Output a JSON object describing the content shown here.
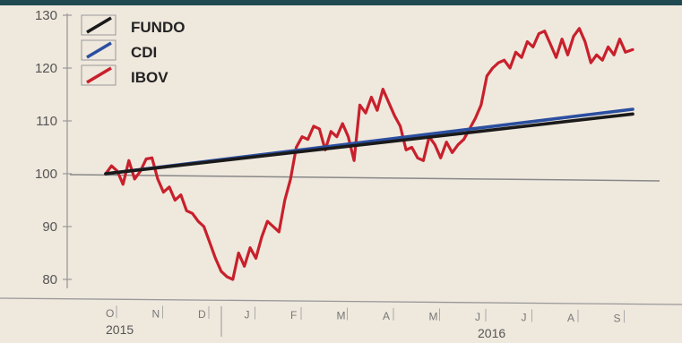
{
  "chart_data": {
    "type": "line",
    "title": "",
    "xlabel": "",
    "ylabel": "",
    "ylim": [
      77,
      131
    ],
    "y_ticks": [
      "130",
      "120",
      "110",
      "100",
      "90",
      "80"
    ],
    "y_tick_values": [
      130,
      120,
      110,
      100,
      90,
      80
    ],
    "month_labels": [
      "O",
      "N",
      "D",
      "J",
      "F",
      "M",
      "A",
      "M",
      "J",
      "J",
      "A",
      "S"
    ],
    "year_labels": [
      "2015",
      "2016"
    ],
    "x_range_months": [
      "2015-10",
      "2016-09"
    ],
    "grid": false,
    "legend_position": "top-left",
    "reference_line": 100,
    "series": [
      {
        "name": "FUNDO",
        "color": "#1a1a1a",
        "x": [
          "2015-10-01",
          "2016-09-30"
        ],
        "values": [
          100.0,
          111.3
        ]
      },
      {
        "name": "CDI",
        "color": "#2b4fa0",
        "x": [
          "2015-10-01",
          "2016-09-30"
        ],
        "values": [
          100.0,
          112.2
        ]
      },
      {
        "name": "IBOV",
        "color": "#c8202c",
        "x": [
          "2015-10-01",
          "2015-10-05",
          "2015-10-09",
          "2015-10-13",
          "2015-10-17",
          "2015-10-21",
          "2015-10-25",
          "2015-10-29",
          "2015-11-02",
          "2015-11-06",
          "2015-11-10",
          "2015-11-14",
          "2015-11-18",
          "2015-11-22",
          "2015-11-26",
          "2015-11-30",
          "2015-12-04",
          "2015-12-08",
          "2015-12-12",
          "2015-12-16",
          "2015-12-20",
          "2015-12-24",
          "2015-12-28",
          "2016-01-01",
          "2016-01-05",
          "2016-01-09",
          "2016-01-13",
          "2016-01-17",
          "2016-01-21",
          "2016-01-25",
          "2016-01-29",
          "2016-02-02",
          "2016-02-06",
          "2016-02-10",
          "2016-02-14",
          "2016-02-18",
          "2016-02-22",
          "2016-02-26",
          "2016-03-01",
          "2016-03-05",
          "2016-03-09",
          "2016-03-13",
          "2016-03-17",
          "2016-03-21",
          "2016-03-25",
          "2016-03-29",
          "2016-04-02",
          "2016-04-06",
          "2016-04-10",
          "2016-04-14",
          "2016-04-18",
          "2016-04-22",
          "2016-04-26",
          "2016-04-30",
          "2016-05-04",
          "2016-05-08",
          "2016-05-12",
          "2016-05-16",
          "2016-05-20",
          "2016-05-24",
          "2016-05-28",
          "2016-06-01",
          "2016-06-05",
          "2016-06-09",
          "2016-06-13",
          "2016-06-17",
          "2016-06-21",
          "2016-06-25",
          "2016-06-29",
          "2016-07-03",
          "2016-07-07",
          "2016-07-11",
          "2016-07-15",
          "2016-07-19",
          "2016-07-23",
          "2016-07-27",
          "2016-07-31",
          "2016-08-04",
          "2016-08-08",
          "2016-08-12",
          "2016-08-16",
          "2016-08-20",
          "2016-08-24",
          "2016-08-28",
          "2016-09-01",
          "2016-09-05",
          "2016-09-09",
          "2016-09-13",
          "2016-09-17",
          "2016-09-21",
          "2016-09-25",
          "2016-09-30"
        ],
        "values": [
          100.0,
          101.5,
          100.5,
          98.0,
          102.5,
          99.0,
          100.5,
          102.8,
          103.0,
          99.0,
          96.5,
          97.5,
          95.0,
          96.0,
          93.0,
          92.5,
          91.0,
          90.0,
          87.0,
          84.0,
          81.5,
          80.5,
          80.0,
          85.0,
          82.5,
          86.0,
          84.0,
          88.0,
          91.0,
          90.0,
          89.0,
          95.0,
          99.0,
          105.0,
          107.0,
          106.5,
          109.0,
          108.5,
          104.5,
          108.0,
          107.0,
          109.5,
          107.0,
          102.5,
          113.0,
          111.5,
          114.5,
          112.0,
          116.0,
          113.5,
          111.0,
          109.0,
          104.5,
          105.0,
          103.0,
          102.5,
          107.0,
          105.5,
          103.0,
          106.0,
          104.0,
          105.5,
          106.5,
          108.5,
          110.5,
          113.0,
          118.5,
          120.0,
          121.0,
          121.5,
          120.0,
          123.0,
          122.0,
          125.0,
          124.0,
          126.5,
          127.0,
          124.5,
          122.0,
          125.5,
          122.5,
          126.0,
          127.5,
          125.0,
          121.0,
          122.5,
          121.5,
          124.0,
          122.5,
          125.5,
          123.0,
          123.5
        ]
      }
    ]
  }
}
